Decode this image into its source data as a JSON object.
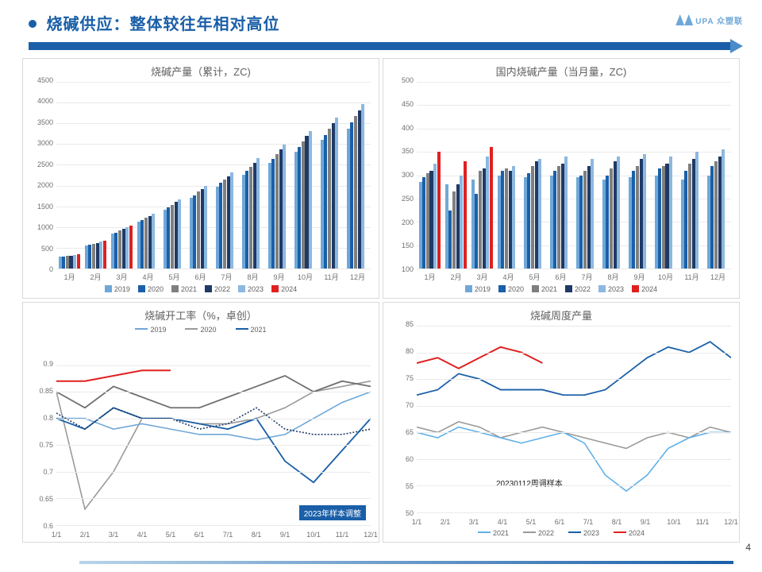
{
  "page": {
    "title": "烧碱供应：整体较往年相对高位",
    "logo_text": "UPA 众塑联",
    "page_number": "4"
  },
  "colors": {
    "y2019": "#6fa8d8",
    "y2020": "#1a5fa8",
    "y2021": "#7f7f7f",
    "y2022": "#1f3a66",
    "y2023": "#8db8e0",
    "y2024": "#e02020",
    "line2019": "#6fa8d8",
    "line2020": "#9a9a9a",
    "line2021_dark": "#1a5fa8",
    "line2022_dotted": "#1f3a66",
    "w2021": "#5fb0e6",
    "w2022": "#9a9a9a",
    "w2023": "#1a5fa8",
    "w2024": "#e02020",
    "grid": "#eaeaea",
    "bg": "#ffffff"
  },
  "months": [
    "1月",
    "2月",
    "3月",
    "4月",
    "5月",
    "6月",
    "7月",
    "8月",
    "9月",
    "10月",
    "11月",
    "12月"
  ],
  "month_dates": [
    "1/1",
    "2/1",
    "3/1",
    "4/1",
    "5/1",
    "6/1",
    "7/1",
    "8/1",
    "9/1",
    "10/1",
    "11/1",
    "12/1"
  ],
  "chart1": {
    "title": "烧碱产量（累计，ZC)",
    "ylim": [
      0,
      4500
    ],
    "ytick_step": 500,
    "series": {
      "2019": [
        280,
        560,
        840,
        1130,
        1420,
        1700,
        1980,
        2260,
        2540,
        2820,
        3100,
        3380
      ],
      "2020": [
        290,
        570,
        870,
        1170,
        1470,
        1770,
        2060,
        2350,
        2640,
        2930,
        3220,
        3520
      ],
      "2021": [
        300,
        600,
        920,
        1230,
        1540,
        1850,
        2150,
        2450,
        2750,
        3060,
        3370,
        3680
      ],
      "2022": [
        310,
        620,
        950,
        1270,
        1600,
        1920,
        2230,
        2550,
        2870,
        3190,
        3500,
        3820
      ],
      "2023": [
        330,
        660,
        1000,
        1330,
        1660,
        1990,
        2320,
        2660,
        2990,
        3310,
        3640,
        3960
      ],
      "2024": [
        340,
        680,
        1030,
        null,
        null,
        null,
        null,
        null,
        null,
        null,
        null,
        null
      ]
    },
    "legend_keys": [
      "2019",
      "2020",
      "2021",
      "2022",
      "2023",
      "2024"
    ]
  },
  "chart2": {
    "title": "国内烧碱产量（当月量，ZC)",
    "ylim": [
      100,
      500
    ],
    "ytick_step": 50,
    "series": {
      "2019": [
        285,
        280,
        290,
        300,
        295,
        300,
        295,
        290,
        295,
        300,
        290,
        300
      ],
      "2020": [
        295,
        225,
        260,
        310,
        305,
        310,
        300,
        300,
        310,
        315,
        310,
        320
      ],
      "2021": [
        305,
        265,
        310,
        315,
        320,
        320,
        310,
        315,
        320,
        320,
        325,
        330
      ],
      "2022": [
        310,
        280,
        315,
        310,
        330,
        325,
        320,
        330,
        335,
        325,
        335,
        340
      ],
      "2023": [
        325,
        300,
        340,
        320,
        335,
        340,
        335,
        340,
        345,
        340,
        350,
        355
      ],
      "2024": [
        350,
        330,
        360,
        null,
        null,
        null,
        null,
        null,
        null,
        null,
        null,
        null
      ]
    },
    "legend_keys": [
      "2019",
      "2020",
      "2021",
      "2022",
      "2023",
      "2024"
    ]
  },
  "chart3": {
    "title": "烧碱开工率（%，卓创）",
    "ylim": [
      0.6,
      0.95
    ],
    "yticks": [
      0.6,
      0.65,
      0.7,
      0.75,
      0.8,
      0.85,
      0.9
    ],
    "xticks": [
      "1/1",
      "2/1",
      "3/1",
      "4/1",
      "5/1",
      "6/1",
      "7/1",
      "8/1",
      "9/1",
      "10/1",
      "11/1",
      "12/1"
    ],
    "legend_top": [
      {
        "label": "2019",
        "color": "#6fa8d8"
      },
      {
        "label": "2020",
        "color": "#9a9a9a"
      },
      {
        "label": "2021",
        "color": "#1a5fa8"
      }
    ],
    "badge_text": "2023年样本调整",
    "series": {
      "y2019": [
        0.8,
        0.8,
        0.78,
        0.79,
        0.78,
        0.77,
        0.77,
        0.76,
        0.77,
        0.8,
        0.83,
        0.85
      ],
      "y2020": [
        0.85,
        0.63,
        0.7,
        0.8,
        0.8,
        0.79,
        0.79,
        0.8,
        0.82,
        0.85,
        0.86,
        0.87
      ],
      "y2021": [
        0.8,
        0.78,
        0.82,
        0.8,
        0.8,
        0.79,
        0.78,
        0.8,
        0.72,
        0.68,
        0.74,
        0.8
      ],
      "y2022_dot": [
        0.81,
        0.78,
        0.82,
        0.8,
        0.8,
        0.78,
        0.79,
        0.82,
        0.78,
        0.77,
        0.77,
        0.78
      ],
      "y2023_gray": [
        0.85,
        0.82,
        0.86,
        0.84,
        0.82,
        0.82,
        0.84,
        0.86,
        0.88,
        0.85,
        0.87,
        0.86
      ],
      "y2024_red": [
        0.87,
        0.87,
        0.88,
        0.89,
        0.89,
        null,
        null,
        null,
        null,
        null,
        null,
        null
      ]
    }
  },
  "chart4": {
    "title": "烧碱周度产量",
    "ylim": [
      50,
      85
    ],
    "ytick_step": 5,
    "xticks": [
      "1/1",
      "2/1",
      "3/1",
      "4/1",
      "5/1",
      "6/1",
      "7/1",
      "8/1",
      "9/1",
      "10/1",
      "11/1",
      "12/1"
    ],
    "note": "20230112周调样本",
    "legend": [
      {
        "label": "2021",
        "color": "#5fb0e6"
      },
      {
        "label": "2022",
        "color": "#9a9a9a"
      },
      {
        "label": "2023",
        "color": "#1a5fa8"
      },
      {
        "label": "2024",
        "color": "#e02020"
      }
    ],
    "series": {
      "2021": [
        65,
        64,
        66,
        65,
        64,
        63,
        64,
        65,
        63,
        57,
        54,
        57,
        62,
        64,
        65,
        65
      ],
      "2022": [
        66,
        65,
        67,
        66,
        64,
        65,
        66,
        65,
        64,
        63,
        62,
        64,
        65,
        64,
        66,
        65
      ],
      "2023": [
        72,
        73,
        76,
        75,
        73,
        73,
        73,
        72,
        72,
        73,
        76,
        79,
        81,
        80,
        82,
        79
      ],
      "2024": [
        78,
        79,
        77,
        79,
        81,
        80,
        78,
        null,
        null,
        null,
        null,
        null,
        null,
        null,
        null,
        null
      ]
    }
  }
}
